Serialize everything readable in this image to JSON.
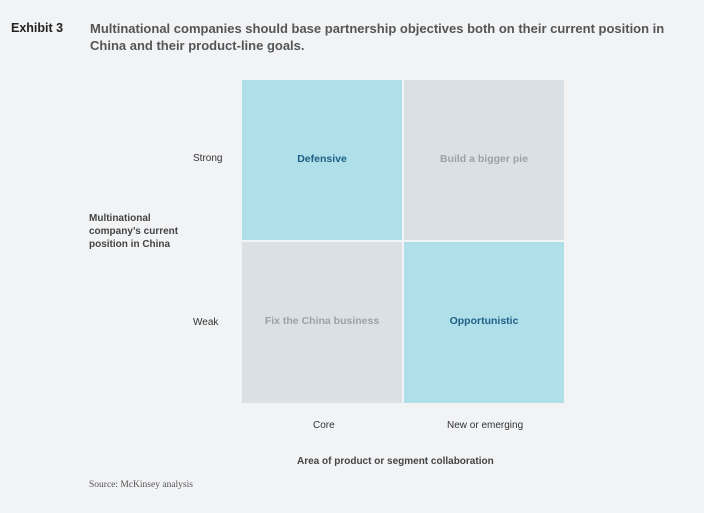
{
  "exhibit": {
    "label": "Exhibit 3",
    "headline": "Multinational companies should base partnership objectives both on their current position in China and their product-line goals."
  },
  "matrix": {
    "y_axis_title": "Multinational company’s current position in China",
    "y_ticks": [
      "Strong",
      "Weak"
    ],
    "x_axis_title": "Area of product or segment collaboration",
    "x_ticks": [
      "Core",
      "New or emerging"
    ],
    "cells": {
      "strong_core": "Defensive",
      "strong_new": "Build a bigger pie",
      "weak_core": "Fix the China business",
      "weak_new": "Opportunistic"
    }
  },
  "source": "Source: McKinsey analysis",
  "colors": {
    "highlight_fill": "#afe0ea",
    "highlight_text": "#1e5f86",
    "muted_fill": "#dbe0e5",
    "muted_text": "#9aa1a8",
    "background": "#f2f3f5"
  }
}
